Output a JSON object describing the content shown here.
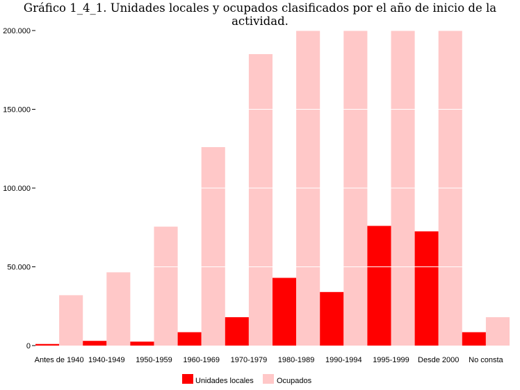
{
  "chart_data": {
    "type": "bar",
    "title": "Gráfico 1_4_1. Unidades locales y ocupados clasificados por el año de inicio de la actividad.",
    "categories": [
      "Antes de 1940",
      "1940-1949",
      "1950-1959",
      "1960-1969",
      "1970-1979",
      "1980-1989",
      "1990-1994",
      "1995-1999",
      "Desde 2000",
      "No consta"
    ],
    "series": [
      {
        "name": "Unidades locales",
        "color": "#ff0000",
        "values": [
          1000,
          3000,
          2500,
          8500,
          18000,
          43000,
          34000,
          76000,
          72500,
          8500
        ]
      },
      {
        "name": "Ocupados",
        "color": "#ffc8c8",
        "values": [
          32000,
          46500,
          75500,
          126000,
          185000,
          200000,
          200000,
          200000,
          200000,
          18000
        ]
      }
    ],
    "ylim": [
      0,
      200000
    ],
    "yticks": [
      0,
      50000,
      100000,
      150000,
      200000
    ],
    "ytick_labels": [
      "0",
      "50.000",
      "100.000",
      "150.000",
      "200.000"
    ],
    "xlabel": "",
    "ylabel": "",
    "grid": true,
    "legend_position": "bottom-center"
  }
}
